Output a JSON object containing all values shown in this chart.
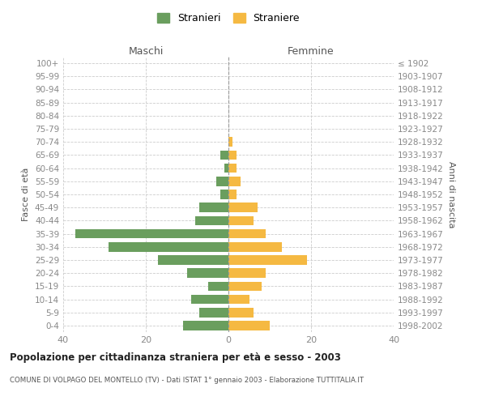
{
  "age_groups": [
    "100+",
    "95-99",
    "90-94",
    "85-89",
    "80-84",
    "75-79",
    "70-74",
    "65-69",
    "60-64",
    "55-59",
    "50-54",
    "45-49",
    "40-44",
    "35-39",
    "30-34",
    "25-29",
    "20-24",
    "15-19",
    "10-14",
    "5-9",
    "0-4"
  ],
  "birth_years": [
    "≤ 1902",
    "1903-1907",
    "1908-1912",
    "1913-1917",
    "1918-1922",
    "1923-1927",
    "1928-1932",
    "1933-1937",
    "1938-1942",
    "1943-1947",
    "1948-1952",
    "1953-1957",
    "1958-1962",
    "1963-1967",
    "1968-1972",
    "1973-1977",
    "1978-1982",
    "1983-1987",
    "1988-1992",
    "1993-1997",
    "1998-2002"
  ],
  "maschi": [
    0,
    0,
    0,
    0,
    0,
    0,
    0,
    2,
    1,
    3,
    2,
    7,
    8,
    37,
    29,
    17,
    10,
    5,
    9,
    7,
    11
  ],
  "femmine": [
    0,
    0,
    0,
    0,
    0,
    0,
    1,
    2,
    2,
    3,
    2,
    7,
    6,
    9,
    13,
    19,
    9,
    8,
    5,
    6,
    10
  ],
  "maschi_color": "#6a9e5e",
  "femmine_color": "#f5b942",
  "title": "Popolazione per cittadinanza straniera per età e sesso - 2003",
  "subtitle": "COMUNE DI VOLPAGO DEL MONTELLO (TV) - Dati ISTAT 1° gennaio 2003 - Elaborazione TUTTITALIA.IT",
  "left_label": "Maschi",
  "right_label": "Femmine",
  "ylabel_left": "Fasce di età",
  "ylabel_right": "Anni di nascita",
  "legend_stranieri": "Stranieri",
  "legend_straniere": "Straniere",
  "xlim": 40,
  "background_color": "#ffffff"
}
